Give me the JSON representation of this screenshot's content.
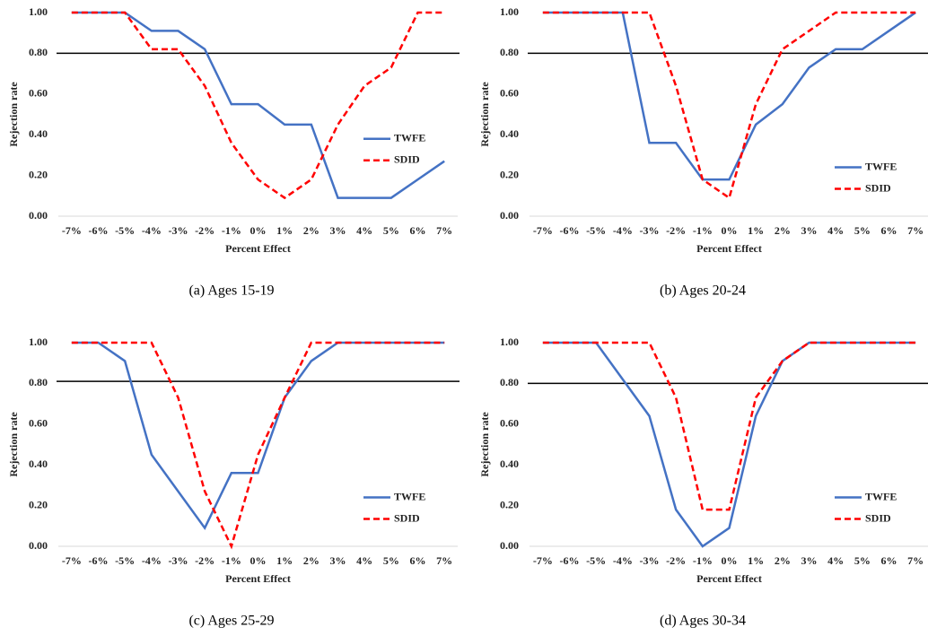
{
  "chart_data": [
    {
      "type": "line",
      "caption": "(a) Ages 15-19",
      "xlabel": "Percent Effect",
      "ylabel": "Rejection rate",
      "categories": [
        "-7%",
        "-6%",
        "-5%",
        "-4%",
        "-3%",
        "-2%",
        "-1%",
        "0%",
        "1%",
        "2%",
        "3%",
        "4%",
        "5%",
        "6%",
        "7%"
      ],
      "series": [
        {
          "name": "TWFE",
          "color": "#4472c4",
          "dashed": false,
          "values": [
            1,
            1,
            1,
            0.91,
            0.91,
            0.82,
            0.55,
            0.55,
            0.45,
            0.45,
            0.09,
            0.09,
            0.09,
            0.18,
            0.27
          ]
        },
        {
          "name": "SDID",
          "color": "#ff0000",
          "dashed": true,
          "values": [
            1,
            1,
            1,
            0.82,
            0.82,
            0.64,
            0.36,
            0.18,
            0.09,
            0.18,
            0.45,
            0.64,
            0.73,
            1,
            1
          ]
        }
      ],
      "ylim": [
        0,
        1
      ],
      "yticks": [
        {
          "value": 0,
          "label": "0.00"
        },
        {
          "value": 0.2,
          "label": "0.20"
        },
        {
          "value": 0.4,
          "label": "0.40"
        },
        {
          "value": 0.6,
          "label": "0.60"
        },
        {
          "value": 0.8,
          "label": "0.80"
        },
        {
          "value": 1,
          "label": "1.00"
        }
      ],
      "hline": 0.8,
      "legend": "center right"
    },
    {
      "type": "line",
      "caption": "(b) Ages 20-24",
      "xlabel": "Percent Effect",
      "ylabel": "Rejection rate",
      "categories": [
        "-7%",
        "-6%",
        "-5%",
        "-4%",
        "-3%",
        "-2%",
        "-1%",
        "0%",
        "1%",
        "2%",
        "3%",
        "4%",
        "5%",
        "6%",
        "7%"
      ],
      "series": [
        {
          "name": "TWFE",
          "color": "#4472c4",
          "dashed": false,
          "values": [
            1,
            1,
            1,
            1,
            0.36,
            0.36,
            0.18,
            0.18,
            0.45,
            0.55,
            0.73,
            0.82,
            0.82,
            0.91,
            1
          ]
        },
        {
          "name": "SDID",
          "color": "#ff0000",
          "dashed": true,
          "values": [
            1,
            1,
            1,
            1,
            1,
            0.64,
            0.18,
            0.09,
            0.55,
            0.82,
            0.91,
            1,
            1,
            1,
            1
          ]
        }
      ],
      "ylim": [
        0,
        1
      ],
      "yticks": [
        {
          "value": 0,
          "label": "0.00"
        },
        {
          "value": 0.2,
          "label": "0.20"
        },
        {
          "value": 0.4,
          "label": "0.40"
        },
        {
          "value": 0.6,
          "label": "0.60"
        },
        {
          "value": 0.8,
          "label": "0.80"
        },
        {
          "value": 1,
          "label": "1.00"
        }
      ],
      "hline": 0.8,
      "legend": "lower right"
    },
    {
      "type": "line",
      "caption": "(c) Ages 25-29",
      "xlabel": "Percent Effect",
      "ylabel": "Rejection rate",
      "categories": [
        "-7%",
        "-6%",
        "-5%",
        "-4%",
        "-3%",
        "-2%",
        "-1%",
        "0%",
        "1%",
        "2%",
        "3%",
        "4%",
        "5%",
        "6%",
        "7%"
      ],
      "series": [
        {
          "name": "TWFE",
          "color": "#4472c4",
          "dashed": false,
          "values": [
            1,
            1,
            0.91,
            0.45,
            0.27,
            0.09,
            0.36,
            0.36,
            0.73,
            0.91,
            1,
            1,
            1,
            1,
            1
          ]
        },
        {
          "name": "SDID",
          "color": "#ff0000",
          "dashed": true,
          "values": [
            1,
            1,
            1,
            1,
            0.73,
            0.27,
            0,
            0.45,
            0.73,
            1,
            1,
            1,
            1,
            1,
            1
          ]
        }
      ],
      "ylim": [
        0,
        1
      ],
      "yticks": [
        {
          "value": 0,
          "label": "0.00"
        },
        {
          "value": 0.2,
          "label": "0.20"
        },
        {
          "value": 0.4,
          "label": "0.40"
        },
        {
          "value": 0.6,
          "label": "0.60"
        },
        {
          "value": 0.8,
          "label": "0.80"
        },
        {
          "value": 1,
          "label": "1.00"
        }
      ],
      "hline": 0.81,
      "legend": "lower right"
    },
    {
      "type": "line",
      "caption": "(d) Ages 30-34",
      "xlabel": "Percent Effect",
      "ylabel": "Rejection rate",
      "categories": [
        "-7%",
        "-6%",
        "-5%",
        "-4%",
        "-3%",
        "-2%",
        "-1%",
        "0%",
        "1%",
        "2%",
        "3%",
        "4%",
        "5%",
        "6%",
        "7%"
      ],
      "series": [
        {
          "name": "TWFE",
          "color": "#4472c4",
          "dashed": false,
          "values": [
            1,
            1,
            1,
            0.82,
            0.64,
            0.18,
            0,
            0.09,
            0.64,
            0.91,
            1,
            1,
            1,
            1,
            1
          ]
        },
        {
          "name": "SDID",
          "color": "#ff0000",
          "dashed": true,
          "values": [
            1,
            1,
            1,
            1,
            1,
            0.73,
            0.18,
            0.18,
            0.73,
            0.91,
            1,
            1,
            1,
            1,
            1
          ]
        }
      ],
      "ylim": [
        0,
        1
      ],
      "yticks": [
        {
          "value": 0,
          "label": "0.00"
        },
        {
          "value": 0.2,
          "label": "0.20"
        },
        {
          "value": 0.4,
          "label": "0.40"
        },
        {
          "value": 0.6,
          "label": "0.60"
        },
        {
          "value": 0.8,
          "label": "0.80"
        },
        {
          "value": 1,
          "label": "1.00"
        }
      ],
      "hline": 0.8,
      "legend": "lower right"
    }
  ]
}
